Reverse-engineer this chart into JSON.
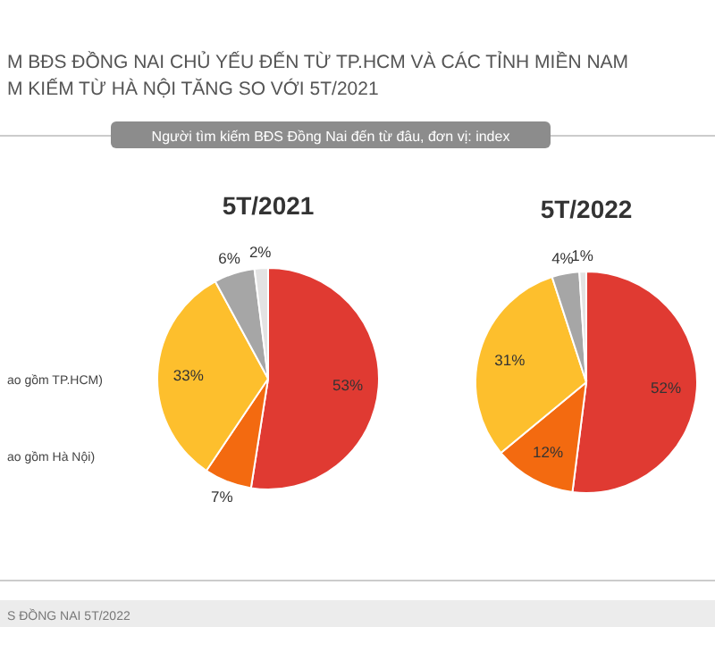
{
  "chart_data": [
    {
      "type": "pie",
      "title": "5T/2021",
      "categories": [
        null,
        null,
        null,
        null,
        null
      ],
      "values": [
        53,
        7,
        33,
        6,
        2
      ],
      "value_labels": [
        "53%",
        "7%",
        "33%",
        "6%",
        "2%"
      ],
      "colors": [
        "#e03a32",
        "#f36a10",
        "#fdbf2d",
        "#a6a6a6",
        "#e3e3e3"
      ],
      "annotations": [
        "M BĐS ĐỒNG NAI CHỦ YẾU ĐẾN TỪ TP.HCM VÀ CÁC TỈNH MIỀN NAM",
        "M KIẾM TỪ HÀ NỘI TĂNG SO VỚI 5T/2021",
        "Người tìm kiếm BĐS Đồng Nai đến từ đâu, đơn vị: index",
        "ao gồm TP.HCM)",
        "ao gồm Hà Nội)",
        "S ĐỒNG NAI 5T/2022"
      ]
    },
    {
      "type": "pie",
      "title": "5T/2022",
      "categories": [
        null,
        null,
        null,
        null,
        null
      ],
      "values": [
        52,
        12,
        31,
        4,
        1
      ],
      "value_labels": [
        "52%",
        "12%",
        "31%",
        "4%",
        "1%"
      ],
      "colors": [
        "#e03a32",
        "#f36a10",
        "#fdbf2d",
        "#a6a6a6",
        "#e3e3e3"
      ]
    }
  ]
}
